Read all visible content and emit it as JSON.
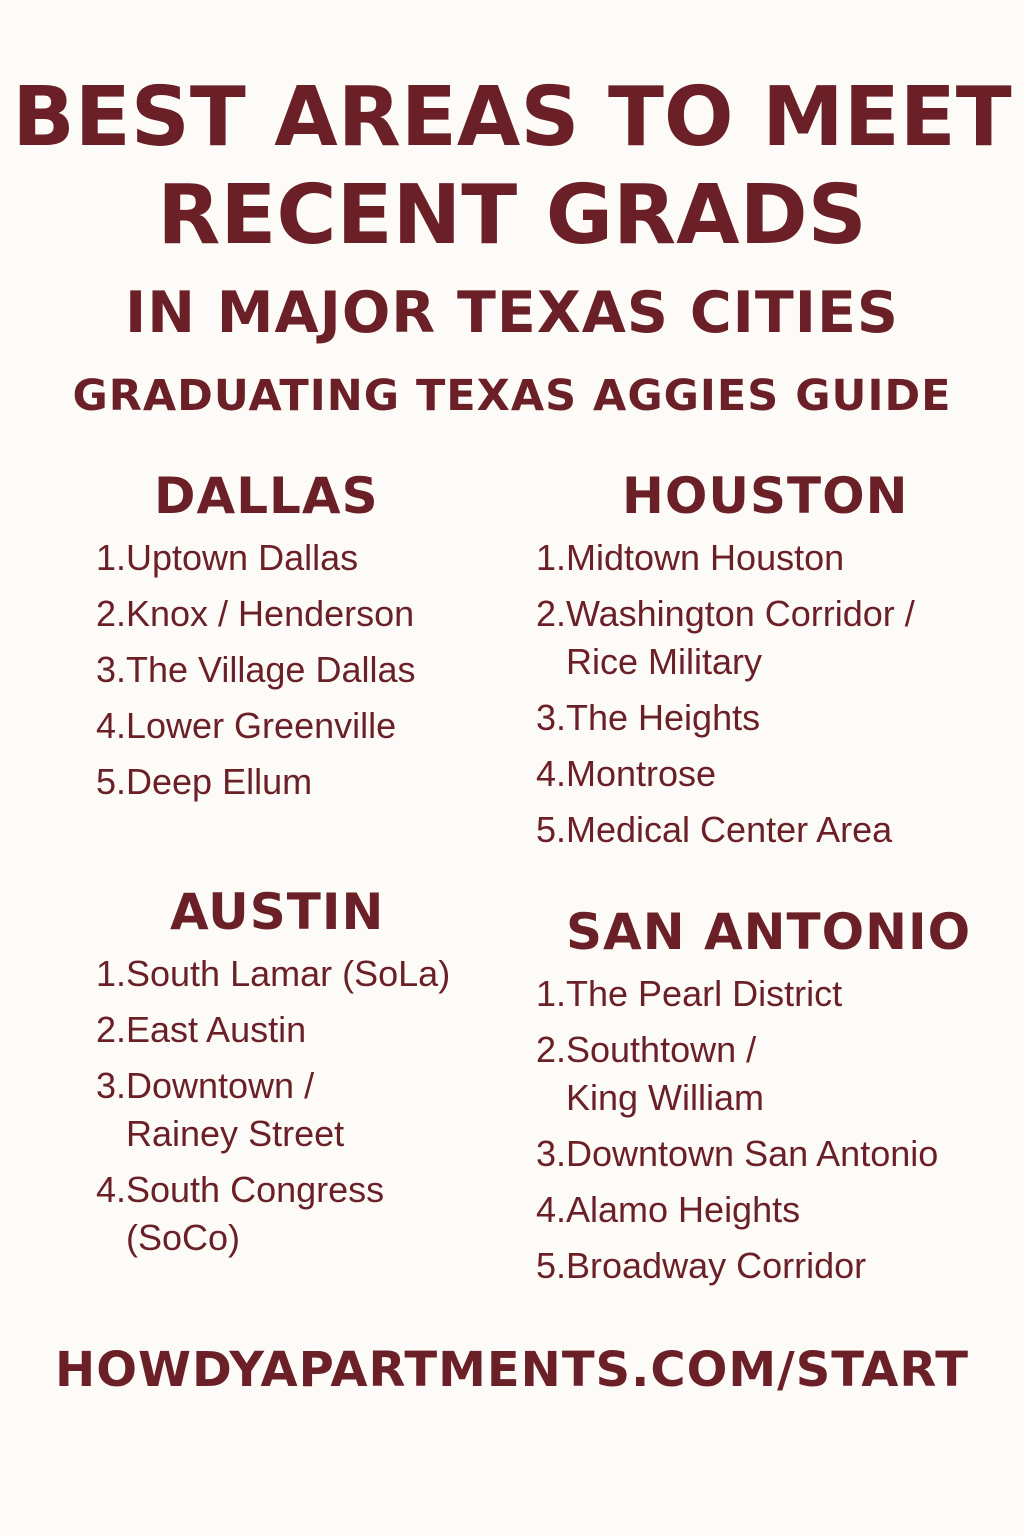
{
  "header": {
    "title_line1": "BEST AREAS TO MEET",
    "title_line2": "RECENT GRADS",
    "title_line3": "IN MAJOR TEXAS CITIES",
    "subtitle": "GRADUATING TEXAS AGGIES GUIDE"
  },
  "cities": {
    "dallas": {
      "name": "DALLAS",
      "areas": [
        {
          "num": "1.",
          "name": "Uptown Dallas"
        },
        {
          "num": "2.",
          "name": "Knox / Henderson"
        },
        {
          "num": "3.",
          "name": "The Village Dallas"
        },
        {
          "num": "4.",
          "name": "Lower Greenville"
        },
        {
          "num": "5.",
          "name": "Deep Ellum"
        }
      ]
    },
    "houston": {
      "name": "HOUSTON",
      "areas": [
        {
          "num": "1.",
          "name": "Midtown Houston"
        },
        {
          "num": "2.",
          "name": "Washington Corridor / Rice Military"
        },
        {
          "num": "3.",
          "name": "The Heights"
        },
        {
          "num": "4.",
          "name": "Montrose"
        },
        {
          "num": "5.",
          "name": "Medical Center Area"
        }
      ]
    },
    "austin": {
      "name": "AUSTIN",
      "areas": [
        {
          "num": "1.",
          "name": "South Lamar (SoLa)"
        },
        {
          "num": "2.",
          "name": "East Austin"
        },
        {
          "num": "3.",
          "name": "Downtown / Rainey Street"
        },
        {
          "num": "4.",
          "name": "South Congress (SoCo)"
        }
      ]
    },
    "san_antonio": {
      "name": "SAN ANTONIO",
      "areas": [
        {
          "num": "1.",
          "name": "The Pearl District"
        },
        {
          "num": "2.",
          "name": "Southtown / King William"
        },
        {
          "num": "3.",
          "name": "Downtown San Antonio"
        },
        {
          "num": "4.",
          "name": "Alamo Heights"
        },
        {
          "num": "5.",
          "name": "Broadway Corridor"
        }
      ]
    }
  },
  "footer": {
    "url": "HOWDYAPARTMENTS.COM/START"
  },
  "colors": {
    "text": "#6b1f27",
    "background": "#fcfbf7"
  }
}
